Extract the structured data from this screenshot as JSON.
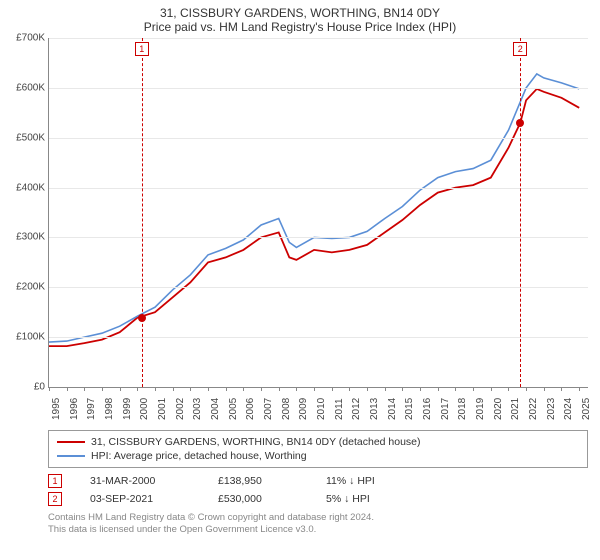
{
  "title_line1": "31, CISSBURY GARDENS, WORTHING, BN14 0DY",
  "title_line2": "Price paid vs. HM Land Registry's House Price Index (HPI)",
  "chart": {
    "type": "line",
    "background_color": "#ffffff",
    "grid_color": "#e8e8e8",
    "axis_color": "#888888",
    "text_color": "#444444",
    "ylim": [
      0,
      700000
    ],
    "ytick_step": 100000,
    "yticks": [
      {
        "v": 0,
        "label": "£0"
      },
      {
        "v": 100000,
        "label": "£100K"
      },
      {
        "v": 200000,
        "label": "£200K"
      },
      {
        "v": 300000,
        "label": "£300K"
      },
      {
        "v": 400000,
        "label": "£400K"
      },
      {
        "v": 500000,
        "label": "£500K"
      },
      {
        "v": 600000,
        "label": "£600K"
      },
      {
        "v": 700000,
        "label": "£700K"
      }
    ],
    "xlim": [
      1995,
      2025.5
    ],
    "xticks": [
      1995,
      1996,
      1997,
      1998,
      1999,
      2000,
      2001,
      2002,
      2003,
      2004,
      2005,
      2006,
      2007,
      2008,
      2009,
      2010,
      2011,
      2012,
      2013,
      2014,
      2015,
      2016,
      2017,
      2018,
      2019,
      2020,
      2021,
      2022,
      2023,
      2024,
      2025
    ],
    "series": [
      {
        "name": "31, CISSBURY GARDENS, WORTHING, BN14 0DY (detached house)",
        "color": "#cc0000",
        "line_width": 1.8,
        "points": [
          [
            1995,
            82000
          ],
          [
            1996,
            82000
          ],
          [
            1997,
            88000
          ],
          [
            1998,
            95000
          ],
          [
            1999,
            110000
          ],
          [
            2000,
            138950
          ],
          [
            2001,
            150000
          ],
          [
            2002,
            180000
          ],
          [
            2003,
            210000
          ],
          [
            2004,
            250000
          ],
          [
            2005,
            260000
          ],
          [
            2006,
            275000
          ],
          [
            2007,
            300000
          ],
          [
            2008,
            310000
          ],
          [
            2008.6,
            260000
          ],
          [
            2009,
            255000
          ],
          [
            2010,
            275000
          ],
          [
            2011,
            270000
          ],
          [
            2012,
            275000
          ],
          [
            2013,
            285000
          ],
          [
            2014,
            310000
          ],
          [
            2015,
            335000
          ],
          [
            2016,
            365000
          ],
          [
            2017,
            390000
          ],
          [
            2018,
            400000
          ],
          [
            2019,
            405000
          ],
          [
            2020,
            420000
          ],
          [
            2021,
            480000
          ],
          [
            2021.67,
            530000
          ],
          [
            2022,
            575000
          ],
          [
            2022.6,
            598000
          ],
          [
            2023,
            592000
          ],
          [
            2024,
            580000
          ],
          [
            2025,
            560000
          ]
        ]
      },
      {
        "name": "HPI: Average price, detached house, Worthing",
        "color": "#5b8fd6",
        "line_width": 1.6,
        "points": [
          [
            1995,
            90000
          ],
          [
            1996,
            92000
          ],
          [
            1997,
            100000
          ],
          [
            1998,
            108000
          ],
          [
            1999,
            122000
          ],
          [
            2000,
            142000
          ],
          [
            2001,
            160000
          ],
          [
            2002,
            195000
          ],
          [
            2003,
            225000
          ],
          [
            2004,
            265000
          ],
          [
            2005,
            278000
          ],
          [
            2006,
            295000
          ],
          [
            2007,
            325000
          ],
          [
            2008,
            338000
          ],
          [
            2008.6,
            290000
          ],
          [
            2009,
            280000
          ],
          [
            2010,
            300000
          ],
          [
            2011,
            298000
          ],
          [
            2012,
            300000
          ],
          [
            2013,
            312000
          ],
          [
            2014,
            338000
          ],
          [
            2015,
            362000
          ],
          [
            2016,
            395000
          ],
          [
            2017,
            420000
          ],
          [
            2018,
            432000
          ],
          [
            2019,
            438000
          ],
          [
            2020,
            455000
          ],
          [
            2021,
            515000
          ],
          [
            2022,
            600000
          ],
          [
            2022.6,
            628000
          ],
          [
            2023,
            620000
          ],
          [
            2024,
            610000
          ],
          [
            2025,
            598000
          ]
        ]
      }
    ],
    "sale_markers": [
      {
        "id": "1",
        "x": 2000.25,
        "y": 138950
      },
      {
        "id": "2",
        "x": 2021.67,
        "y": 530000
      }
    ],
    "label_fontsize": 10
  },
  "legend": {
    "border_color": "#999999",
    "items": [
      {
        "color": "#cc0000",
        "label": "31, CISSBURY GARDENS, WORTHING, BN14 0DY (detached house)"
      },
      {
        "color": "#5b8fd6",
        "label": "HPI: Average price, detached house, Worthing"
      }
    ]
  },
  "sales": [
    {
      "id": "1",
      "date": "31-MAR-2000",
      "price": "£138,950",
      "delta": "11% ↓ HPI"
    },
    {
      "id": "2",
      "date": "03-SEP-2021",
      "price": "£530,000",
      "delta": "5% ↓ HPI"
    }
  ],
  "footer_line1": "Contains HM Land Registry data © Crown copyright and database right 2024.",
  "footer_line2": "This data is licensed under the Open Government Licence v3.0."
}
